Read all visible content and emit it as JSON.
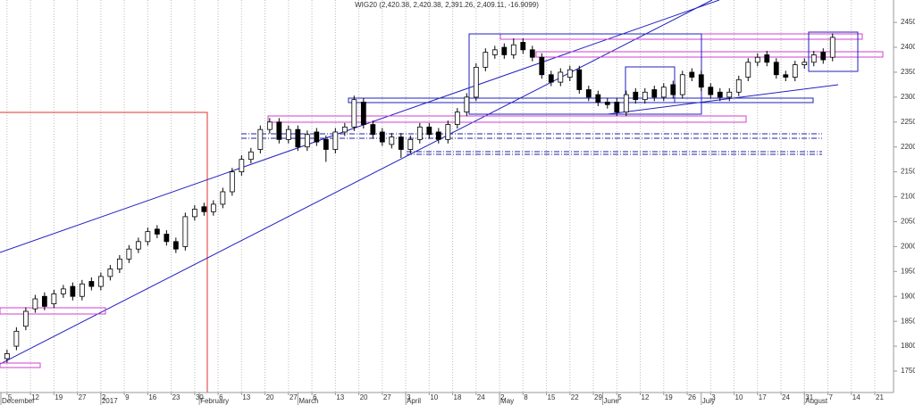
{
  "chart_data": {
    "type": "candlestick",
    "title": "WIG20 (2,420.38, 2,420.38, 2,391.26, 2,409.11, -16.9099)",
    "x": [
      0,
      2,
      4,
      6,
      8,
      10,
      12,
      14,
      16,
      18,
      20,
      22,
      24,
      26,
      28,
      30,
      32,
      34,
      36,
      38,
      40,
      42,
      44,
      46,
      48,
      50,
      52,
      54,
      56,
      58,
      60,
      62,
      64,
      66,
      68,
      70,
      72,
      74,
      76,
      78,
      80,
      82,
      84,
      86,
      88,
      90,
      92,
      94,
      96,
      98,
      100,
      102,
      104,
      106,
      108,
      110,
      112,
      114,
      116,
      118,
      120,
      122,
      124,
      126,
      128,
      130,
      132,
      134,
      136,
      138,
      140,
      142,
      144,
      146,
      148,
      150,
      152,
      154,
      156,
      158,
      160,
      162,
      164,
      166,
      168,
      170,
      172,
      174,
      176
    ],
    "open": [
      1775,
      1800,
      1840,
      1875,
      1900,
      1885,
      1905,
      1920,
      1900,
      1930,
      1920,
      1940,
      1955,
      1975,
      1995,
      2010,
      2035,
      2025,
      2010,
      2000,
      2060,
      2080,
      2070,
      2085,
      2110,
      2150,
      2175,
      2195,
      2235,
      2250,
      2215,
      2235,
      2200,
      2230,
      2215,
      2195,
      2230,
      2240,
      2290,
      2245,
      2230,
      2205,
      2220,
      2195,
      2215,
      2240,
      2230,
      2215,
      2245,
      2270,
      2300,
      2360,
      2385,
      2400,
      2385,
      2410,
      2395,
      2380,
      2345,
      2330,
      2340,
      2355,
      2315,
      2305,
      2290,
      2290,
      2270,
      2310,
      2295,
      2315,
      2300,
      2325,
      2305,
      2350,
      2345,
      2320,
      2310,
      2300,
      2310,
      2340,
      2370,
      2385,
      2370,
      2345,
      2340,
      2365,
      2370,
      2390,
      2380
    ],
    "high": [
      1793,
      1838,
      1878,
      1903,
      1908,
      1913,
      1923,
      1928,
      1933,
      1938,
      1948,
      1963,
      1983,
      2003,
      2018,
      2038,
      2043,
      2033,
      2018,
      2068,
      2083,
      2088,
      2093,
      2118,
      2158,
      2183,
      2198,
      2243,
      2258,
      2258,
      2243,
      2243,
      2233,
      2238,
      2223,
      2238,
      2248,
      2303,
      2298,
      2253,
      2238,
      2228,
      2228,
      2223,
      2248,
      2248,
      2238,
      2253,
      2278,
      2308,
      2368,
      2398,
      2403,
      2408,
      2418,
      2418,
      2403,
      2388,
      2353,
      2358,
      2363,
      2363,
      2323,
      2313,
      2298,
      2298,
      2313,
      2318,
      2318,
      2323,
      2328,
      2333,
      2353,
      2358,
      2353,
      2328,
      2318,
      2318,
      2343,
      2378,
      2388,
      2393,
      2378,
      2353,
      2373,
      2378,
      2393,
      2398,
      2428
    ],
    "low": [
      1767,
      1792,
      1832,
      1867,
      1872,
      1877,
      1897,
      1892,
      1892,
      1912,
      1912,
      1932,
      1947,
      1967,
      1987,
      2002,
      2017,
      2002,
      1987,
      1992,
      2052,
      2062,
      2062,
      2077,
      2102,
      2142,
      2167,
      2187,
      2227,
      2207,
      2207,
      2192,
      2192,
      2202,
      2170,
      2187,
      2222,
      2232,
      2237,
      2217,
      2202,
      2197,
      2178,
      2187,
      2207,
      2217,
      2207,
      2207,
      2237,
      2262,
      2292,
      2352,
      2377,
      2377,
      2377,
      2387,
      2372,
      2337,
      2322,
      2322,
      2332,
      2307,
      2292,
      2282,
      2277,
      2262,
      2262,
      2287,
      2287,
      2292,
      2292,
      2297,
      2297,
      2332,
      2312,
      2297,
      2292,
      2292,
      2302,
      2332,
      2362,
      2362,
      2337,
      2332,
      2332,
      2357,
      2362,
      2367,
      2372
    ],
    "close": [
      1785,
      1830,
      1870,
      1895,
      1880,
      1905,
      1915,
      1900,
      1925,
      1920,
      1940,
      1955,
      1975,
      1995,
      2010,
      2030,
      2025,
      2010,
      1995,
      2060,
      2075,
      2070,
      2085,
      2110,
      2150,
      2175,
      2190,
      2235,
      2250,
      2215,
      2235,
      2200,
      2225,
      2210,
      2195,
      2230,
      2240,
      2295,
      2245,
      2225,
      2210,
      2220,
      2195,
      2215,
      2240,
      2225,
      2215,
      2245,
      2270,
      2300,
      2360,
      2390,
      2395,
      2385,
      2405,
      2395,
      2380,
      2345,
      2330,
      2350,
      2355,
      2315,
      2300,
      2290,
      2285,
      2270,
      2305,
      2295,
      2310,
      2300,
      2320,
      2305,
      2345,
      2340,
      2320,
      2305,
      2300,
      2310,
      2335,
      2370,
      2380,
      2370,
      2345,
      2340,
      2365,
      2370,
      2385,
      2375,
      2420
    ],
    "xlim": [
      -1.5,
      189
    ],
    "xticks": [
      {
        "value": 0,
        "label": "5"
      },
      {
        "value": 5,
        "label": "12"
      },
      {
        "value": 10,
        "label": "19"
      },
      {
        "value": 15,
        "label": "27"
      },
      {
        "value": 20,
        "label": "2"
      },
      {
        "value": 25,
        "label": "9"
      },
      {
        "value": 30,
        "label": "16"
      },
      {
        "value": 35,
        "label": "23"
      },
      {
        "value": 40,
        "label": "30"
      },
      {
        "value": 45,
        "label": "6"
      },
      {
        "value": 50,
        "label": "13"
      },
      {
        "value": 55,
        "label": "20"
      },
      {
        "value": 60,
        "label": "27"
      },
      {
        "value": 65,
        "label": "6"
      },
      {
        "value": 70,
        "label": "13"
      },
      {
        "value": 75,
        "label": "20"
      },
      {
        "value": 80,
        "label": "27"
      },
      {
        "value": 85,
        "label": "3"
      },
      {
        "value": 90,
        "label": "10"
      },
      {
        "value": 95,
        "label": "18"
      },
      {
        "value": 100,
        "label": "24"
      },
      {
        "value": 105,
        "label": "2"
      },
      {
        "value": 110,
        "label": "8"
      },
      {
        "value": 115,
        "label": "15"
      },
      {
        "value": 120,
        "label": "22"
      },
      {
        "value": 125,
        "label": "29"
      },
      {
        "value": 130,
        "label": "5"
      },
      {
        "value": 135,
        "label": "12"
      },
      {
        "value": 140,
        "label": "19"
      },
      {
        "value": 145,
        "label": "26"
      },
      {
        "value": 150,
        "label": "3"
      },
      {
        "value": 155,
        "label": "10"
      },
      {
        "value": 160,
        "label": "17"
      },
      {
        "value": 165,
        "label": "24"
      },
      {
        "value": 170,
        "label": "31"
      },
      {
        "value": 175,
        "label": "7"
      },
      {
        "value": 180,
        "label": "14"
      },
      {
        "value": 185,
        "label": "21"
      }
    ],
    "period_labels": [
      {
        "value": -1.5,
        "label": "December"
      },
      {
        "value": 20,
        "label": "2017"
      },
      {
        "value": 41,
        "label": "February"
      },
      {
        "value": 62,
        "label": "March"
      },
      {
        "value": 85,
        "label": "April"
      },
      {
        "value": 105,
        "label": "May"
      },
      {
        "value": 127,
        "label": "June"
      },
      {
        "value": 148,
        "label": "July"
      },
      {
        "value": 170,
        "label": "August"
      }
    ],
    "ylim": [
      1707,
      2495
    ],
    "yticks": [
      1750,
      1800,
      1850,
      1900,
      1950,
      2000,
      2050,
      2100,
      2150,
      2200,
      2250,
      2300,
      2350,
      2400,
      2450
    ],
    "up_color": "#ffffff",
    "down_color": "#000000",
    "grid": true
  }
}
